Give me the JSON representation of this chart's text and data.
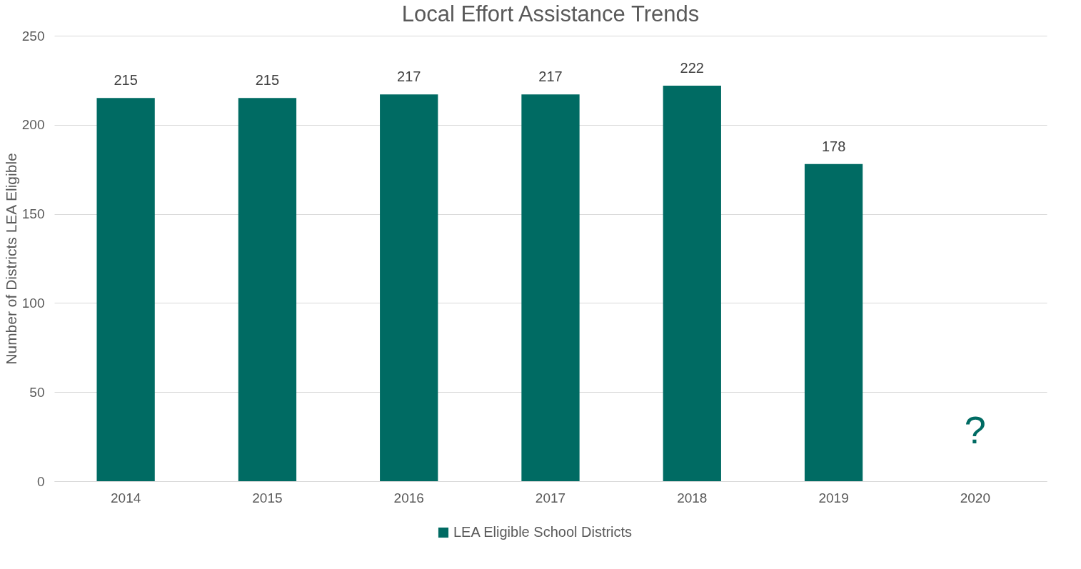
{
  "chart_data": {
    "type": "bar",
    "title": "Local Effort Assistance Trends",
    "ylabel": "Number of Districts LEA Eligible",
    "categories": [
      "2014",
      "2015",
      "2016",
      "2017",
      "2018",
      "2019",
      "2020"
    ],
    "series": [
      {
        "name": "LEA Eligible School Districts",
        "color": "#006b63",
        "values": [
          215,
          215,
          217,
          217,
          222,
          178,
          null
        ]
      }
    ],
    "ylim": [
      0,
      250
    ],
    "yticks": [
      0,
      50,
      100,
      150,
      200,
      250
    ],
    "grid": "y",
    "legend": "bottom",
    "data_labels": true,
    "annotations": [
      "?"
    ]
  }
}
